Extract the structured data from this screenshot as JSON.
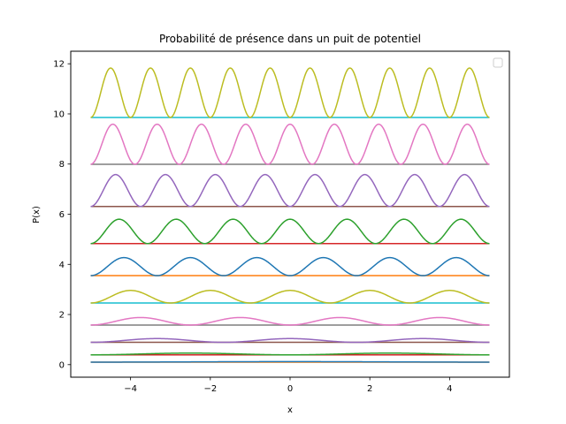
{
  "chart_data": {
    "type": "line",
    "title": "Probabilité de présence dans un puit de potentiel",
    "xlabel": "x",
    "ylabel": "P(x)",
    "xlim": [
      -5.5,
      5.5
    ],
    "ylim": [
      -0.5,
      12.5
    ],
    "x_ticks": [
      -4,
      -2,
      0,
      2,
      4
    ],
    "x_tick_labels": [
      "−4",
      "−2",
      "0",
      "2",
      "4"
    ],
    "y_ticks": [
      0,
      2,
      4,
      6,
      8,
      10,
      12
    ],
    "y_tick_labels": [
      "0",
      "2",
      "4",
      "6",
      "8",
      "10",
      "12"
    ],
    "x_range": [
      -5,
      5
    ],
    "legend": {
      "location": "upper right",
      "entries": []
    },
    "grid": false,
    "levels": [
      {
        "n": 1,
        "energy": 0.1,
        "amplitude": 0.02,
        "energy_color": "#ff7f0e",
        "curve_color": "#1f77b4"
      },
      {
        "n": 2,
        "energy": 0.39,
        "amplitude": 0.07,
        "energy_color": "#d62728",
        "curve_color": "#2ca02c"
      },
      {
        "n": 3,
        "energy": 0.89,
        "amplitude": 0.15,
        "energy_color": "#8c564b",
        "curve_color": "#9467bd"
      },
      {
        "n": 4,
        "energy": 1.58,
        "amplitude": 0.3,
        "energy_color": "#7f7f7f",
        "curve_color": "#e377c2"
      },
      {
        "n": 5,
        "energy": 2.46,
        "amplitude": 0.5,
        "energy_color": "#17becf",
        "curve_color": "#bcbd22"
      },
      {
        "n": 6,
        "energy": 3.55,
        "amplitude": 0.72,
        "energy_color": "#ff7f0e",
        "curve_color": "#1f77b4"
      },
      {
        "n": 7,
        "energy": 4.83,
        "amplitude": 0.97,
        "energy_color": "#d62728",
        "curve_color": "#2ca02c"
      },
      {
        "n": 8,
        "energy": 6.31,
        "amplitude": 1.27,
        "energy_color": "#8c564b",
        "curve_color": "#9467bd"
      },
      {
        "n": 9,
        "energy": 7.99,
        "amplitude": 1.6,
        "energy_color": "#7f7f7f",
        "curve_color": "#e377c2"
      },
      {
        "n": 10,
        "energy": 9.86,
        "amplitude": 1.97,
        "energy_color": "#17becf",
        "curve_color": "#bcbd22"
      }
    ]
  }
}
